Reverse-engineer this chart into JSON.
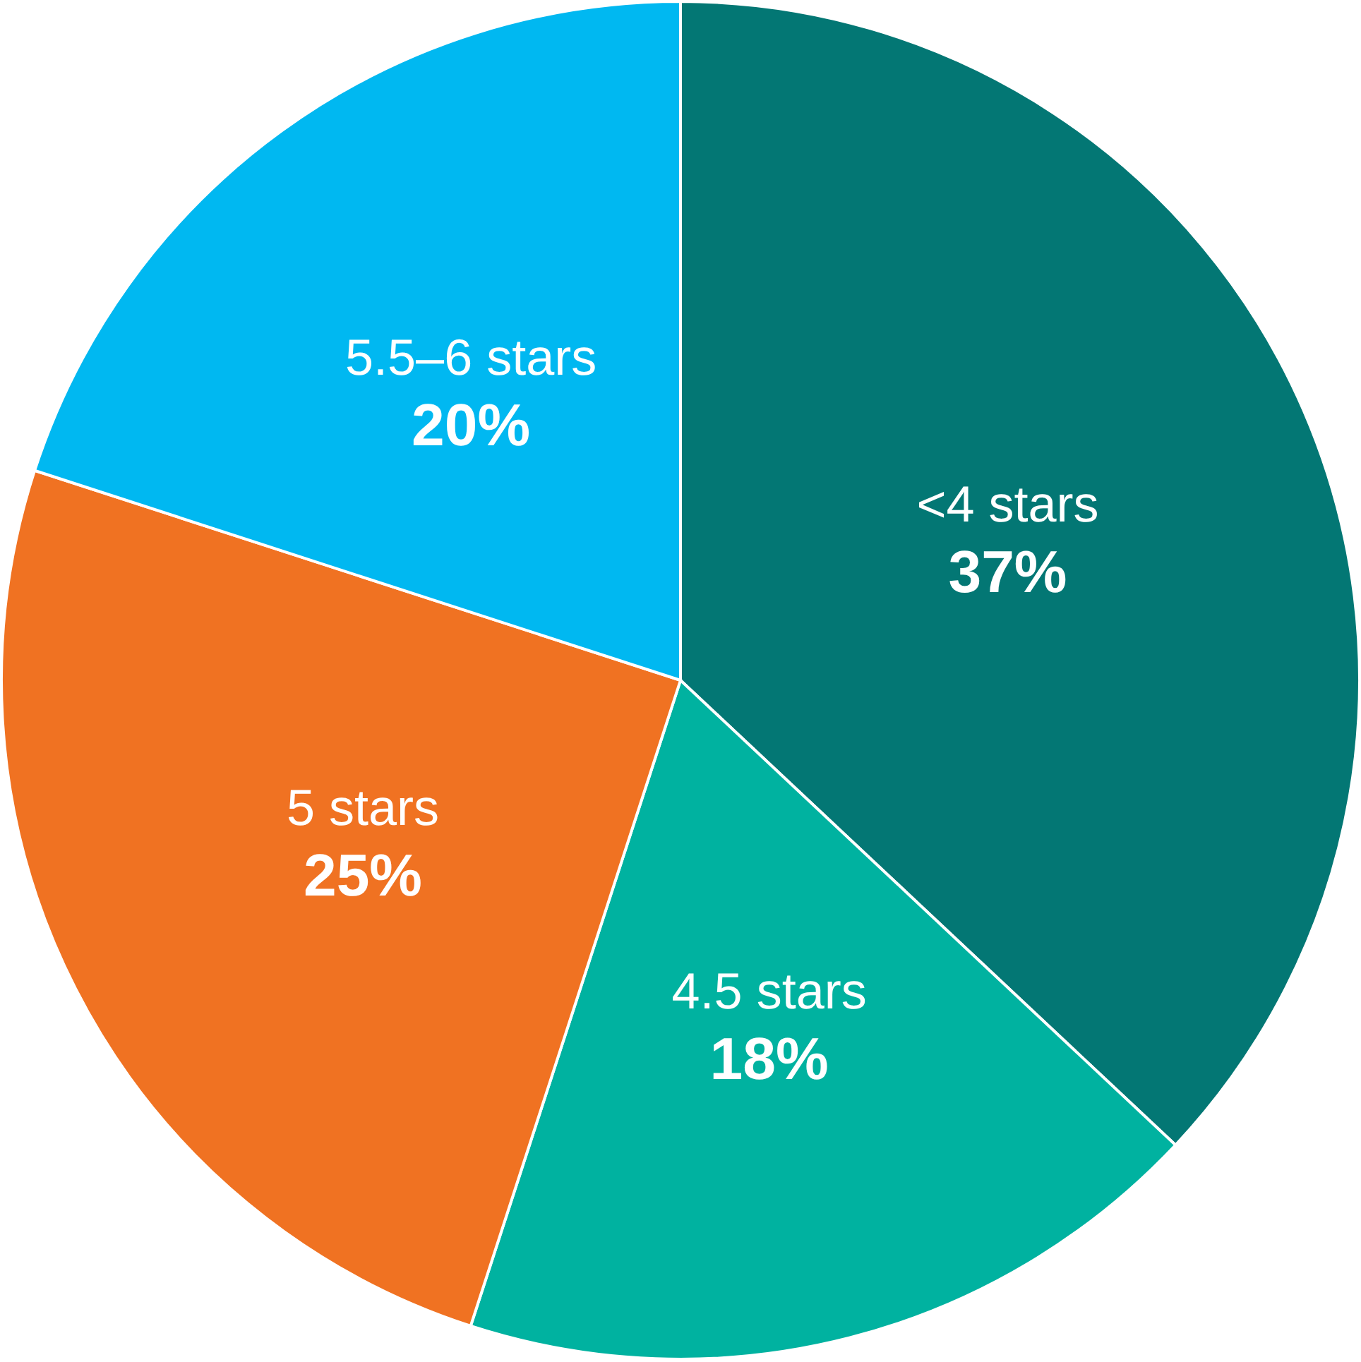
{
  "chart_data": {
    "type": "pie",
    "categories": [
      "<4 stars",
      "4.5 stars",
      "5 stars",
      "5.5–6 stars"
    ],
    "values": [
      37,
      18,
      25,
      20
    ],
    "colors": [
      "#037774",
      "#00b2a0",
      "#f07222",
      "#00b8f1"
    ],
    "value_labels": [
      "37%",
      "18%",
      "25%",
      "20%"
    ]
  }
}
